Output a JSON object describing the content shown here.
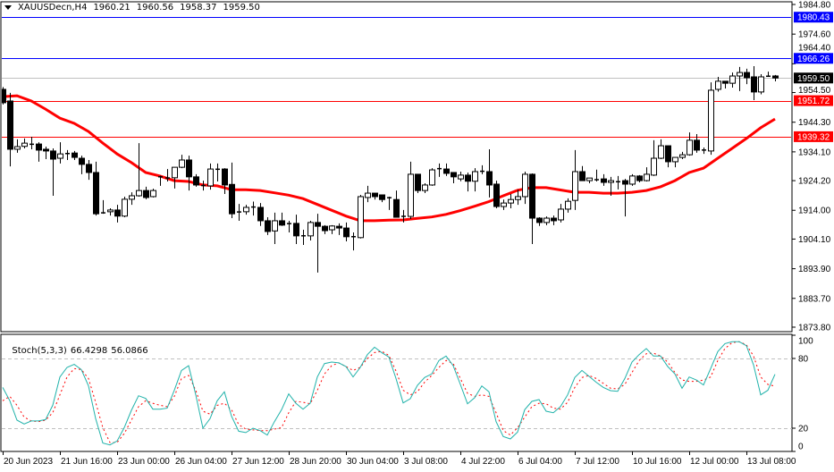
{
  "header": {
    "symbol": "XAUUSDecn,H4",
    "open": "1960.21",
    "high": "1960.56",
    "low": "1958.37",
    "close": "1959.50"
  },
  "indicator": {
    "name": "Stoch(5,3,3)",
    "main_value": "66.4298",
    "signal_value": "56.0866"
  },
  "colors": {
    "bull_body": "#ffffff",
    "bear_body": "#000000",
    "ma": "#ff0000",
    "stoch_main": "#20b2aa",
    "stoch_signal": "#ff0000",
    "level_blue": "#0000ff",
    "level_red": "#ff0000",
    "bid_line": "#c0c0c0"
  },
  "price_axis": {
    "labels": [
      "1984.80",
      "1974.60",
      "1964.40",
      "1954.50",
      "1944.30",
      "1934.10",
      "1924.20",
      "1914.00",
      "1904.10",
      "1893.90",
      "1883.70",
      "1873.80"
    ],
    "range": [
      1873.8,
      1984.8
    ]
  },
  "level_tags": [
    {
      "price": "1980.43",
      "color": "#0000ff",
      "line": true
    },
    {
      "price": "1966.26",
      "color": "#0000ff",
      "line": true
    },
    {
      "price": "1959.50",
      "color": "#000000",
      "line": true,
      "bid": true
    },
    {
      "price": "1951.72",
      "color": "#ff0000",
      "line": true
    },
    {
      "price": "1939.32",
      "color": "#ff0000",
      "line": true
    }
  ],
  "stoch_axis": {
    "labels": [
      "100",
      "80",
      "20",
      "0"
    ],
    "levels": [
      80,
      20
    ]
  },
  "time_axis": [
    {
      "label": "20 Jun 2023",
      "bar": 0
    },
    {
      "label": "21 Jun 16:00",
      "bar": 8
    },
    {
      "label": "23 Jun 00:00",
      "bar": 16
    },
    {
      "label": "26 Jun 04:00",
      "bar": 24
    },
    {
      "label": "27 Jun 12:00",
      "bar": 32
    },
    {
      "label": "28 Jun 20:00",
      "bar": 40
    },
    {
      "label": "30 Jun 04:00",
      "bar": 48
    },
    {
      "label": "3 Jul 08:00",
      "bar": 56
    },
    {
      "label": "4 Jul 22:00",
      "bar": 64
    },
    {
      "label": "6 Jul 04:00",
      "bar": 72
    },
    {
      "label": "7 Jul 12:00",
      "bar": 80
    },
    {
      "label": "10 Jul 16:00",
      "bar": 88
    },
    {
      "label": "12 Jul 00:00",
      "bar": 96
    },
    {
      "label": "13 Jul 08:00",
      "bar": 104
    }
  ],
  "chart_data": {
    "type": "candlestick",
    "timeframe": "H4",
    "candles_ohlc": [
      [
        1955.6,
        1956.4,
        1950.4,
        1951.0
      ],
      [
        1951.6,
        1954.4,
        1929.1,
        1935.0
      ],
      [
        1935.0,
        1938.4,
        1933.8,
        1935.9
      ],
      [
        1936.0,
        1938.7,
        1935.3,
        1937.1
      ],
      [
        1936.8,
        1939.3,
        1935.0,
        1936.6
      ],
      [
        1936.8,
        1937.4,
        1930.7,
        1934.7
      ],
      [
        1935.0,
        1935.9,
        1931.6,
        1934.4
      ],
      [
        1934.4,
        1935.3,
        1919.0,
        1931.6
      ],
      [
        1931.9,
        1937.4,
        1930.1,
        1933.4
      ],
      [
        1933.4,
        1934.7,
        1931.3,
        1933.6
      ],
      [
        1933.7,
        1934.4,
        1931.3,
        1932.2
      ],
      [
        1931.9,
        1932.8,
        1926.4,
        1929.8
      ],
      [
        1929.8,
        1931.3,
        1924.5,
        1927.0
      ],
      [
        1927.0,
        1930.7,
        1912.2,
        1912.8
      ],
      [
        1913.0,
        1917.5,
        1912.8,
        1913.2
      ],
      [
        1913.5,
        1914.7,
        1912.2,
        1914.1
      ],
      [
        1914.1,
        1915.9,
        1909.8,
        1912.0
      ],
      [
        1912.0,
        1918.7,
        1911.6,
        1917.8
      ],
      [
        1917.8,
        1920.2,
        1915.9,
        1919.0
      ],
      [
        1919.0,
        1937.1,
        1918.7,
        1920.8
      ],
      [
        1920.8,
        1922.1,
        1917.8,
        1918.4
      ],
      [
        1918.7,
        1921.4,
        1918.4,
        1920.8
      ],
      [
        1925.4,
        1925.9,
        1922.4,
        1925.6
      ],
      [
        1925.2,
        1928.2,
        1923.9,
        1925.1
      ],
      [
        1925.2,
        1928.8,
        1921.5,
        1928.8
      ],
      [
        1928.8,
        1933.1,
        1928.5,
        1931.3
      ],
      [
        1931.3,
        1932.8,
        1920.8,
        1925.5
      ],
      [
        1925.5,
        1926.4,
        1922.1,
        1922.7
      ],
      [
        1922.6,
        1924.2,
        1920.8,
        1922.4
      ],
      [
        1922.4,
        1930.1,
        1921.1,
        1928.2
      ],
      [
        1928.0,
        1930.1,
        1923.9,
        1928.2
      ],
      [
        1928.2,
        1928.5,
        1919.6,
        1922.7
      ],
      [
        1922.9,
        1930.4,
        1911.3,
        1912.8
      ],
      [
        1913.3,
        1916.2,
        1910.4,
        1913.5
      ],
      [
        1913.5,
        1915.9,
        1912.5,
        1915.0
      ],
      [
        1915.0,
        1917.0,
        1912.2,
        1915.2
      ],
      [
        1915.0,
        1916.5,
        1908.6,
        1910.4
      ],
      [
        1910.4,
        1911.6,
        1905.5,
        1906.7
      ],
      [
        1906.9,
        1913.2,
        1902.4,
        1910.4
      ],
      [
        1910.4,
        1913.2,
        1908.6,
        1908.9
      ],
      [
        1909.5,
        1910.4,
        1906.4,
        1909.3
      ],
      [
        1909.5,
        1912.5,
        1902.4,
        1905.2
      ],
      [
        1905.3,
        1907.3,
        1902.1,
        1905.1
      ],
      [
        1905.2,
        1910.4,
        1903.6,
        1909.8
      ],
      [
        1909.8,
        1912.8,
        1892.6,
        1908.5
      ],
      [
        1908.5,
        1908.9,
        1905.8,
        1907.0
      ],
      [
        1907.3,
        1908.9,
        1905.8,
        1908.6
      ],
      [
        1908.5,
        1909.5,
        1905.5,
        1907.9
      ],
      [
        1907.9,
        1909.8,
        1903.3,
        1904.9
      ],
      [
        1904.9,
        1906.4,
        1900.2,
        1905.0
      ],
      [
        1904.6,
        1919.3,
        1904.3,
        1918.7
      ],
      [
        1918.4,
        1922.4,
        1916.8,
        1919.9
      ],
      [
        1919.9,
        1919.9,
        1917.7,
        1918.7
      ],
      [
        1919.3,
        1919.3,
        1916.8,
        1917.7
      ],
      [
        1918.4,
        1918.7,
        1914.1,
        1918.2
      ],
      [
        1917.7,
        1920.8,
        1911.6,
        1911.6
      ],
      [
        1912.0,
        1914.1,
        1909.8,
        1911.8
      ],
      [
        1911.9,
        1930.7,
        1911.0,
        1926.4
      ],
      [
        1926.4,
        1926.4,
        1919.9,
        1920.8
      ],
      [
        1920.8,
        1923.3,
        1919.9,
        1922.7
      ],
      [
        1922.7,
        1928.5,
        1922.4,
        1927.9
      ],
      [
        1928.2,
        1930.1,
        1925.5,
        1928.4
      ],
      [
        1928.2,
        1930.1,
        1925.8,
        1926.7
      ],
      [
        1927.0,
        1927.0,
        1923.3,
        1925.5
      ],
      [
        1924.8,
        1927.3,
        1924.0,
        1926.1
      ],
      [
        1926.1,
        1927.0,
        1920.5,
        1924.0
      ],
      [
        1924.0,
        1928.5,
        1920.5,
        1927.3
      ],
      [
        1927.3,
        1929.5,
        1926.4,
        1927.5
      ],
      [
        1927.3,
        1935.0,
        1918.4,
        1922.7
      ],
      [
        1923.0,
        1924.2,
        1914.7,
        1915.3
      ],
      [
        1915.3,
        1917.7,
        1914.1,
        1916.5
      ],
      [
        1916.5,
        1919.6,
        1914.7,
        1917.7
      ],
      [
        1917.7,
        1921.1,
        1915.9,
        1918.7
      ],
      [
        1918.7,
        1927.3,
        1916.2,
        1926.4
      ],
      [
        1926.4,
        1926.7,
        1902.4,
        1911.3
      ],
      [
        1911.3,
        1911.6,
        1908.6,
        1909.8
      ],
      [
        1909.8,
        1911.9,
        1908.9,
        1911.3
      ],
      [
        1911.3,
        1912.2,
        1908.9,
        1910.4
      ],
      [
        1910.7,
        1916.2,
        1909.8,
        1914.4
      ],
      [
        1914.4,
        1918.1,
        1913.2,
        1917.1
      ],
      [
        1917.4,
        1934.7,
        1914.1,
        1927.3
      ],
      [
        1927.3,
        1929.2,
        1924.2,
        1924.2
      ],
      [
        1924.2,
        1925.1,
        1923.3,
        1925.1
      ],
      [
        1924.5,
        1928.0,
        1923.9,
        1924.6
      ],
      [
        1924.8,
        1926.4,
        1922.4,
        1923.6
      ],
      [
        1923.6,
        1925.5,
        1919.0,
        1924.2
      ],
      [
        1923.9,
        1925.8,
        1921.2,
        1923.8
      ],
      [
        1924.2,
        1924.8,
        1911.9,
        1923.0
      ],
      [
        1923.0,
        1926.4,
        1922.4,
        1925.8
      ],
      [
        1925.8,
        1926.1,
        1923.6,
        1924.2
      ],
      [
        1924.2,
        1928.8,
        1923.9,
        1926.4
      ],
      [
        1926.1,
        1938.1,
        1925.8,
        1931.9
      ],
      [
        1931.9,
        1938.4,
        1931.6,
        1936.2
      ],
      [
        1936.2,
        1936.2,
        1928.8,
        1930.7
      ],
      [
        1930.7,
        1932.2,
        1928.8,
        1932.2
      ],
      [
        1932.2,
        1934.1,
        1931.6,
        1933.1
      ],
      [
        1933.1,
        1940.8,
        1932.8,
        1938.1
      ],
      [
        1938.1,
        1940.2,
        1933.8,
        1934.7
      ],
      [
        1934.6,
        1935.6,
        1933.4,
        1934.8
      ],
      [
        1934.4,
        1958.0,
        1933.1,
        1955.3
      ],
      [
        1955.6,
        1959.9,
        1954.8,
        1958.4
      ],
      [
        1958.4,
        1958.4,
        1955.9,
        1957.7
      ],
      [
        1957.7,
        1961.4,
        1956.2,
        1960.2
      ],
      [
        1960.2,
        1963.3,
        1955.0,
        1961.4
      ],
      [
        1961.4,
        1962.7,
        1957.4,
        1959.6
      ],
      [
        1959.9,
        1963.6,
        1951.9,
        1954.7
      ],
      [
        1954.7,
        1960.8,
        1953.9,
        1959.9
      ],
      [
        1960.1,
        1961.7,
        1959.9,
        1960.2
      ],
      [
        1960.21,
        1960.56,
        1958.37,
        1959.5
      ]
    ],
    "moving_average_every_2_bars": [
      1953.1,
      1953.4,
      1951.6,
      1948.8,
      1945.7,
      1943.9,
      1941.1,
      1937.1,
      1933.4,
      1930.4,
      1927.0,
      1925.8,
      1924.2,
      1923.9,
      1922.7,
      1922.4,
      1921.1,
      1921.1,
      1920.8,
      1920.0,
      1919.2,
      1918.0,
      1916.0,
      1914.0,
      1912.0,
      1910.4,
      1910.4,
      1910.6,
      1910.7,
      1911.2,
      1911.7,
      1912.6,
      1913.9,
      1915.4,
      1917.0,
      1919.0,
      1920.9,
      1921.8,
      1921.8,
      1921.0,
      1920.2,
      1920.2,
      1919.9,
      1919.9,
      1920.2,
      1920.8,
      1922.1,
      1924.2,
      1927.0,
      1928.5,
      1931.9,
      1935.3,
      1938.7,
      1942.4,
      1945.4
    ],
    "stoch_main": [
      55.1,
      43.6,
      26.9,
      23.6,
      26.2,
      26.2,
      27.4,
      39.7,
      64.1,
      72.3,
      74.9,
      70.5,
      56.4,
      28.2,
      7.2,
      5.6,
      9.0,
      20.5,
      35.4,
      47.9,
      45.6,
      36.4,
      36.4,
      37.2,
      52.6,
      69.7,
      73.8,
      48.7,
      20.0,
      28.2,
      43.6,
      51.3,
      30.3,
      17.4,
      16.2,
      20.0,
      17.9,
      14.1,
      25.6,
      35.9,
      49.5,
      41.5,
      36.4,
      41.5,
      64.1,
      75.6,
      76.9,
      76.2,
      73.1,
      64.1,
      72.3,
      83.3,
      89.7,
      85.1,
      81.3,
      62.8,
      41.8,
      45.4,
      56.9,
      63.6,
      66.7,
      78.2,
      82.1,
      73.8,
      57.7,
      41.0,
      46.2,
      56.4,
      51.3,
      25.6,
      12.8,
      10.8,
      16.7,
      35.9,
      43.1,
      44.6,
      34.6,
      33.3,
      38.5,
      48.7,
      63.6,
      69.7,
      64.6,
      59.5,
      55.1,
      52.3,
      51.8,
      62.8,
      76.9,
      83.3,
      88.5,
      82.1,
      82.1,
      73.1,
      66.7,
      54.4,
      64.1,
      61.5,
      57.2,
      71.3,
      85.9,
      92.8,
      94.4,
      94.4,
      91.0,
      74.4,
      48.7,
      52.6,
      66.4
    ],
    "stoch_signal": [
      43.6,
      47.4,
      39.7,
      29.5,
      26.2,
      25.6,
      26.9,
      33.3,
      48.7,
      64.1,
      71.3,
      70.5,
      62.8,
      42.3,
      20.5,
      7.7,
      7.7,
      15.4,
      26.9,
      38.5,
      43.6,
      41.5,
      39.7,
      38.5,
      47.4,
      62.8,
      65.4,
      52.6,
      34.6,
      32.1,
      39.7,
      41.5,
      35.9,
      23.1,
      19.2,
      18.5,
      17.9,
      17.9,
      19.2,
      20.5,
      33.3,
      43.1,
      42.3,
      41.0,
      52.6,
      66.7,
      73.8,
      76.2,
      73.1,
      69.7,
      72.3,
      80.0,
      85.1,
      86.2,
      82.6,
      69.2,
      52.6,
      48.7,
      51.3,
      59.5,
      65.4,
      72.3,
      78.2,
      75.6,
      62.8,
      50.0,
      47.4,
      48.7,
      47.4,
      33.3,
      17.9,
      14.1,
      20.5,
      29.5,
      38.5,
      41.5,
      41.0,
      37.2,
      36.4,
      42.3,
      55.1,
      63.6,
      65.4,
      62.8,
      58.5,
      54.4,
      53.8,
      57.7,
      67.9,
      78.2,
      84.1,
      84.6,
      82.1,
      76.9,
      67.9,
      61.5,
      60.3,
      60.3,
      61.5,
      64.1,
      78.2,
      88.5,
      93.6,
      94.4,
      91.8,
      82.1,
      64.1,
      57.7,
      56.1
    ]
  }
}
